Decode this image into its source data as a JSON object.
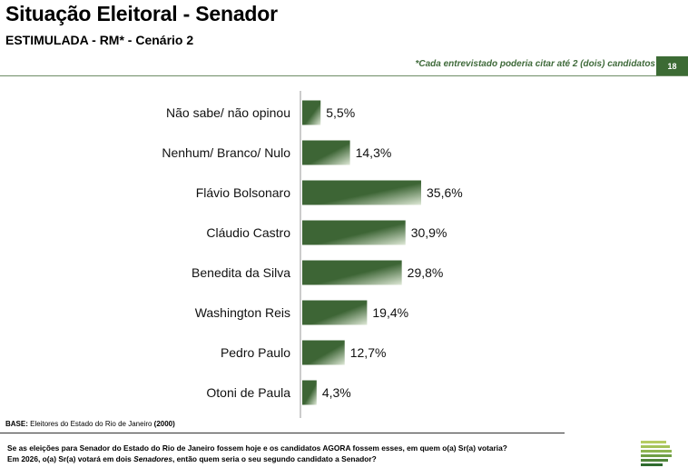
{
  "header": {
    "title": "Situação Eleitoral - Senador",
    "subtitle": "ESTIMULADA - RM* - Cenário 2",
    "note": "*Cada entrevistado poderia citar até 2 (dois) candidatos",
    "page_number": "18"
  },
  "footer": {
    "base_label": "BASE:",
    "base_text": "Eleitores do Estado do Rio de Janeiro",
    "base_n": "(2000)",
    "question_line1": "Se as eleições para Senador do Estado do Rio de Janeiro fossem hoje e os candidatos AGORA fossem esses, em quem o(a) Sr(a) votaria?",
    "question_line2_a": "Em 2026, o(a) Sr(a) votará em dois ",
    "question_line2_b": "Senadores",
    "question_line2_c": ", então quem seria o seu segundo candidato a Senador?"
  },
  "colors": {
    "bar_dark": "#3d6535",
    "bar_light": "#dfe9d7",
    "accent": "#3c6b34"
  },
  "chart_data": {
    "type": "bar",
    "orientation": "horizontal",
    "categories": [
      "Não sabe/ não opinou",
      "Nenhum/ Branco/ Nulo",
      "Flávio Bolsonaro",
      "Cláudio Castro",
      "Benedita da Silva",
      "Washington Reis",
      "Pedro Paulo",
      "Otoni de Paula"
    ],
    "values": [
      5.5,
      14.3,
      35.6,
      30.9,
      29.8,
      19.4,
      12.7,
      4.3
    ],
    "labels": [
      "5,5%",
      "14,3%",
      "35,6%",
      "30,9%",
      "29,8%",
      "19,4%",
      "12,7%",
      "4,3%"
    ],
    "xlim": [
      0,
      40
    ],
    "grid": false,
    "legend": "none"
  }
}
